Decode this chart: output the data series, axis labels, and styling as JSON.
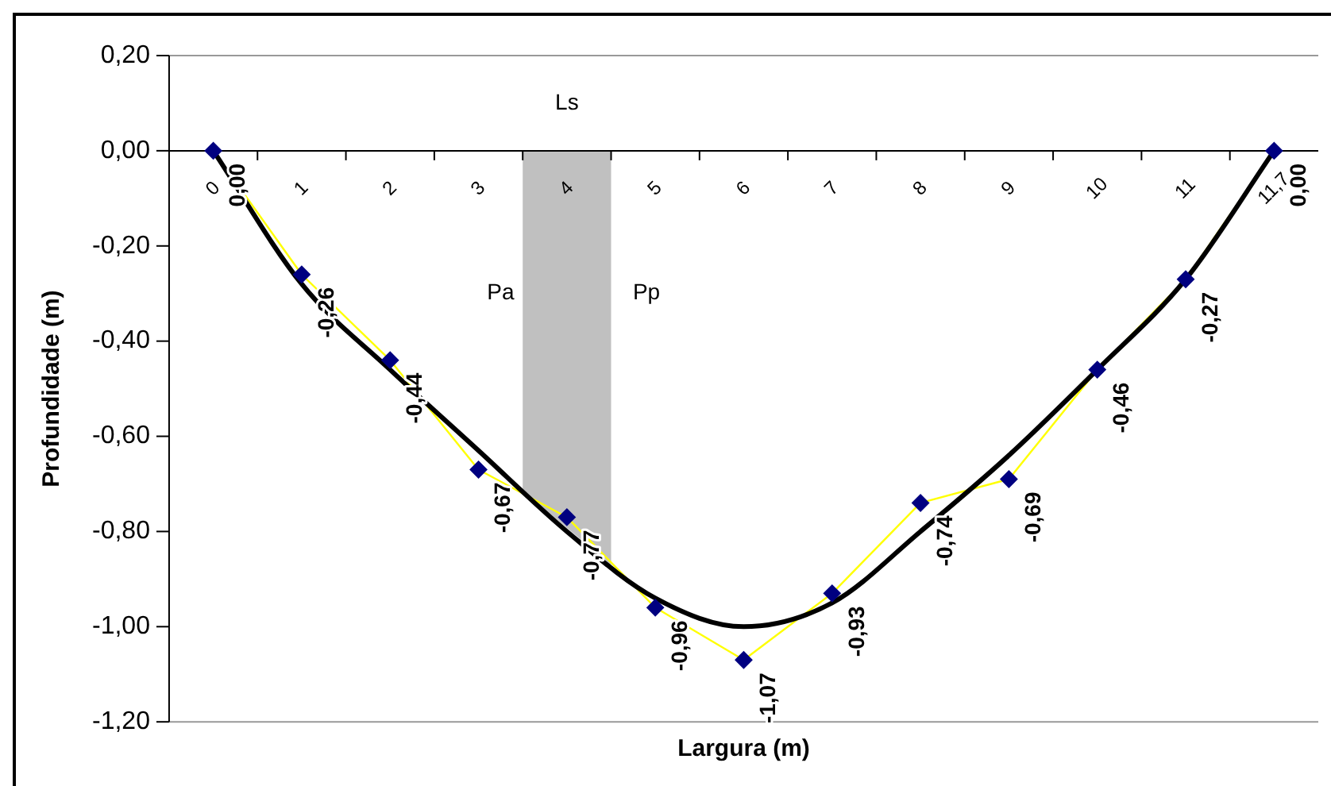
{
  "chart_data": {
    "type": "line",
    "xlabel": "Largura (m)",
    "ylabel": "Profundidade (m)",
    "categories": [
      "0",
      "1",
      "2",
      "3",
      "4",
      "5",
      "6",
      "7",
      "8",
      "9",
      "10",
      "11",
      "11,7"
    ],
    "series": [
      {
        "color": "#ffff00",
        "marker": "none",
        "values": [
          0,
          -0.26,
          -0.44,
          -0.67,
          -0.77,
          -0.96,
          -1.07,
          -0.93,
          -0.74,
          -0.69,
          -0.46,
          -0.27,
          0
        ]
      },
      {
        "type": "scatter",
        "color": "#000080",
        "marker": "diamond",
        "x": [
          "0",
          "1",
          "2",
          "3",
          "4",
          "5",
          "6",
          "7",
          "8",
          "9",
          "10",
          "11",
          "11,7"
        ],
        "values": [
          0,
          -0.26,
          -0.44,
          -0.67,
          -0.77,
          -0.96,
          -1.07,
          -0.93,
          -0.74,
          -0.69,
          -0.46,
          -0.27,
          0
        ],
        "value_labels": [
          "0,00",
          "-0,26",
          "-0,44",
          "-0,67",
          "-0,77",
          "-0,96",
          "-1,07",
          "-0,93",
          "-0,74",
          "-0,69",
          "-0,46",
          "-0,27",
          "0,00"
        ]
      },
      {
        "type": "line",
        "color": "#000000",
        "marker": "none",
        "values": [
          0,
          -0.28,
          -0.46,
          -0.63,
          -0.8,
          -0.94,
          -1.0,
          -0.95,
          -0.8,
          -0.64,
          -0.46,
          -0.27,
          0
        ]
      }
    ],
    "ylim": [
      -1.2,
      0.2
    ],
    "yticks": [
      {
        "value": 0.2,
        "label": "0,20"
      },
      {
        "value": 0,
        "label": "0,00"
      },
      {
        "value": -0.2,
        "label": "-0,20"
      },
      {
        "value": -0.4,
        "label": "-0,40"
      },
      {
        "value": -0.6,
        "label": "-0,60"
      },
      {
        "value": -0.8,
        "label": "-0,80"
      },
      {
        "value": -1.0,
        "label": "-1,00"
      },
      {
        "value": -1.2,
        "label": "-1,20"
      }
    ],
    "annotations": [
      "Ls",
      "Pa",
      "Pp"
    ],
    "grid": false,
    "legend": false
  }
}
